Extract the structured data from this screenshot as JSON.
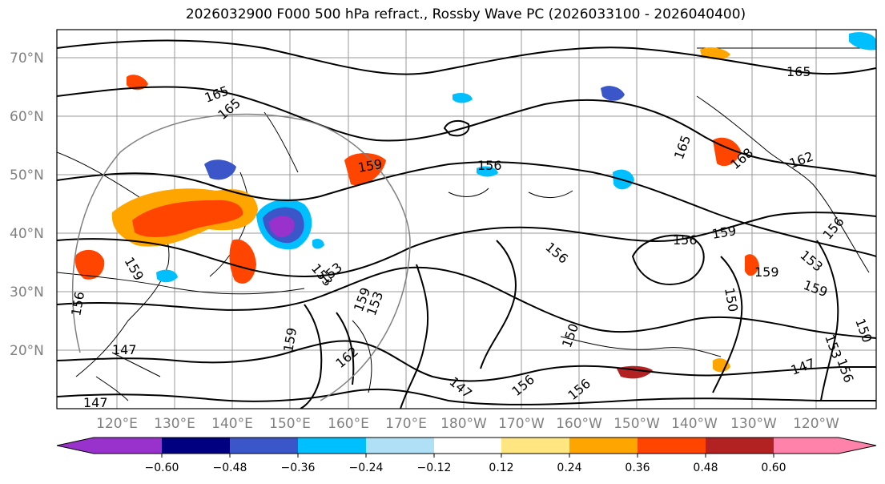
{
  "title": "2026032900 F000 500 hPa refract., Rossby Wave PC (2026033100 - 2026040400)",
  "lat_labels": [
    "70°N",
    "60°N",
    "50°N",
    "40°N",
    "30°N",
    "20°N"
  ],
  "lon_labels": [
    "120°E",
    "130°E",
    "140°E",
    "150°E",
    "160°E",
    "170°E",
    "180°W",
    "170°W",
    "160°W",
    "150°W",
    "140°W",
    "130°W",
    "120°W"
  ],
  "colorbar": {
    "colors": [
      "#9932cc",
      "#000080",
      "#3a56c8",
      "#00bfff",
      "#b0e0f5",
      "#ffffff",
      "#ffe680",
      "#ffa500",
      "#ff4500",
      "#b22222",
      "#ff82ab"
    ],
    "ticks": [
      "−0.60",
      "−0.48",
      "−0.36",
      "−0.24",
      "−0.12",
      "0.12",
      "0.24",
      "0.36",
      "0.48",
      "0.60"
    ]
  },
  "contour_labels": [
    "165",
    "165",
    "159",
    "156",
    "165",
    "168",
    "162",
    "165",
    "156",
    "159",
    "153",
    "156",
    "153",
    "153",
    "159",
    "159",
    "159",
    "150",
    "159",
    "153",
    "156",
    "150",
    "150",
    "147",
    "147",
    "147",
    "159",
    "156",
    "162",
    "153",
    "156",
    "156",
    "147",
    "156"
  ]
}
